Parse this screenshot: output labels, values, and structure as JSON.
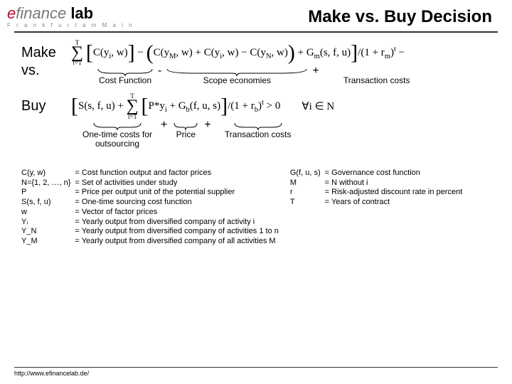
{
  "header": {
    "logo_e": "e",
    "logo_finance": "finance",
    "logo_lab": " lab",
    "logo_sub": "F r a n k f u r t   a m   M a i n",
    "title": "Make vs. Buy Decision"
  },
  "rows": {
    "make": "Make",
    "vs": "vs.",
    "buy": "Buy"
  },
  "formula": {
    "make": "C(y_i, w) − [C(y_M, w) + C(y_i, w) − C(y_N, w)] + G_m(s, f, u) / (1 + r_m)^t −",
    "buy": "S(s, f, u) + Σ [P·y_i + G_b(f, u, s)] / (1 + r_b)^t > 0",
    "forall": "∀i ∈ N"
  },
  "anno1": {
    "a": "Cost Function",
    "op1": "-",
    "b": "Scope economies",
    "op2": "+",
    "c": "Transaction costs"
  },
  "anno2": {
    "a": "One-time costs for outsourcing",
    "op1": "+",
    "b": "Price",
    "op2": "+",
    "c": "Transaction costs"
  },
  "legend_left": [
    [
      "C(y, w)",
      "= Cost function output and factor prices"
    ],
    [
      "N={1, 2, …, n}",
      "= Set of activities under study"
    ],
    [
      "P",
      "= Price per output unit of the potential supplier"
    ],
    [
      "S(s, f, u)",
      "= One-time sourcing cost function"
    ],
    [
      "w",
      "= Vector of factor prices"
    ],
    [
      "Yᵢ",
      "= Yearly output from diversified company of activity i"
    ],
    [
      "Y_N",
      "= Yearly output from diversified company of activities 1 to n"
    ],
    [
      "Y_M",
      "= Yearly output from diversified company of all activities M"
    ]
  ],
  "legend_right": [
    [
      "G(f, u, s)",
      "= Governance cost function"
    ],
    [
      "M",
      "= N without i"
    ],
    [
      "r",
      "= Risk-adjusted discount rate in percent"
    ],
    [
      "T",
      "= Years of contract"
    ]
  ],
  "footer": "http://www.efinancelab.de/",
  "style": {
    "brace_color": "#000000",
    "text_color": "#000000"
  }
}
